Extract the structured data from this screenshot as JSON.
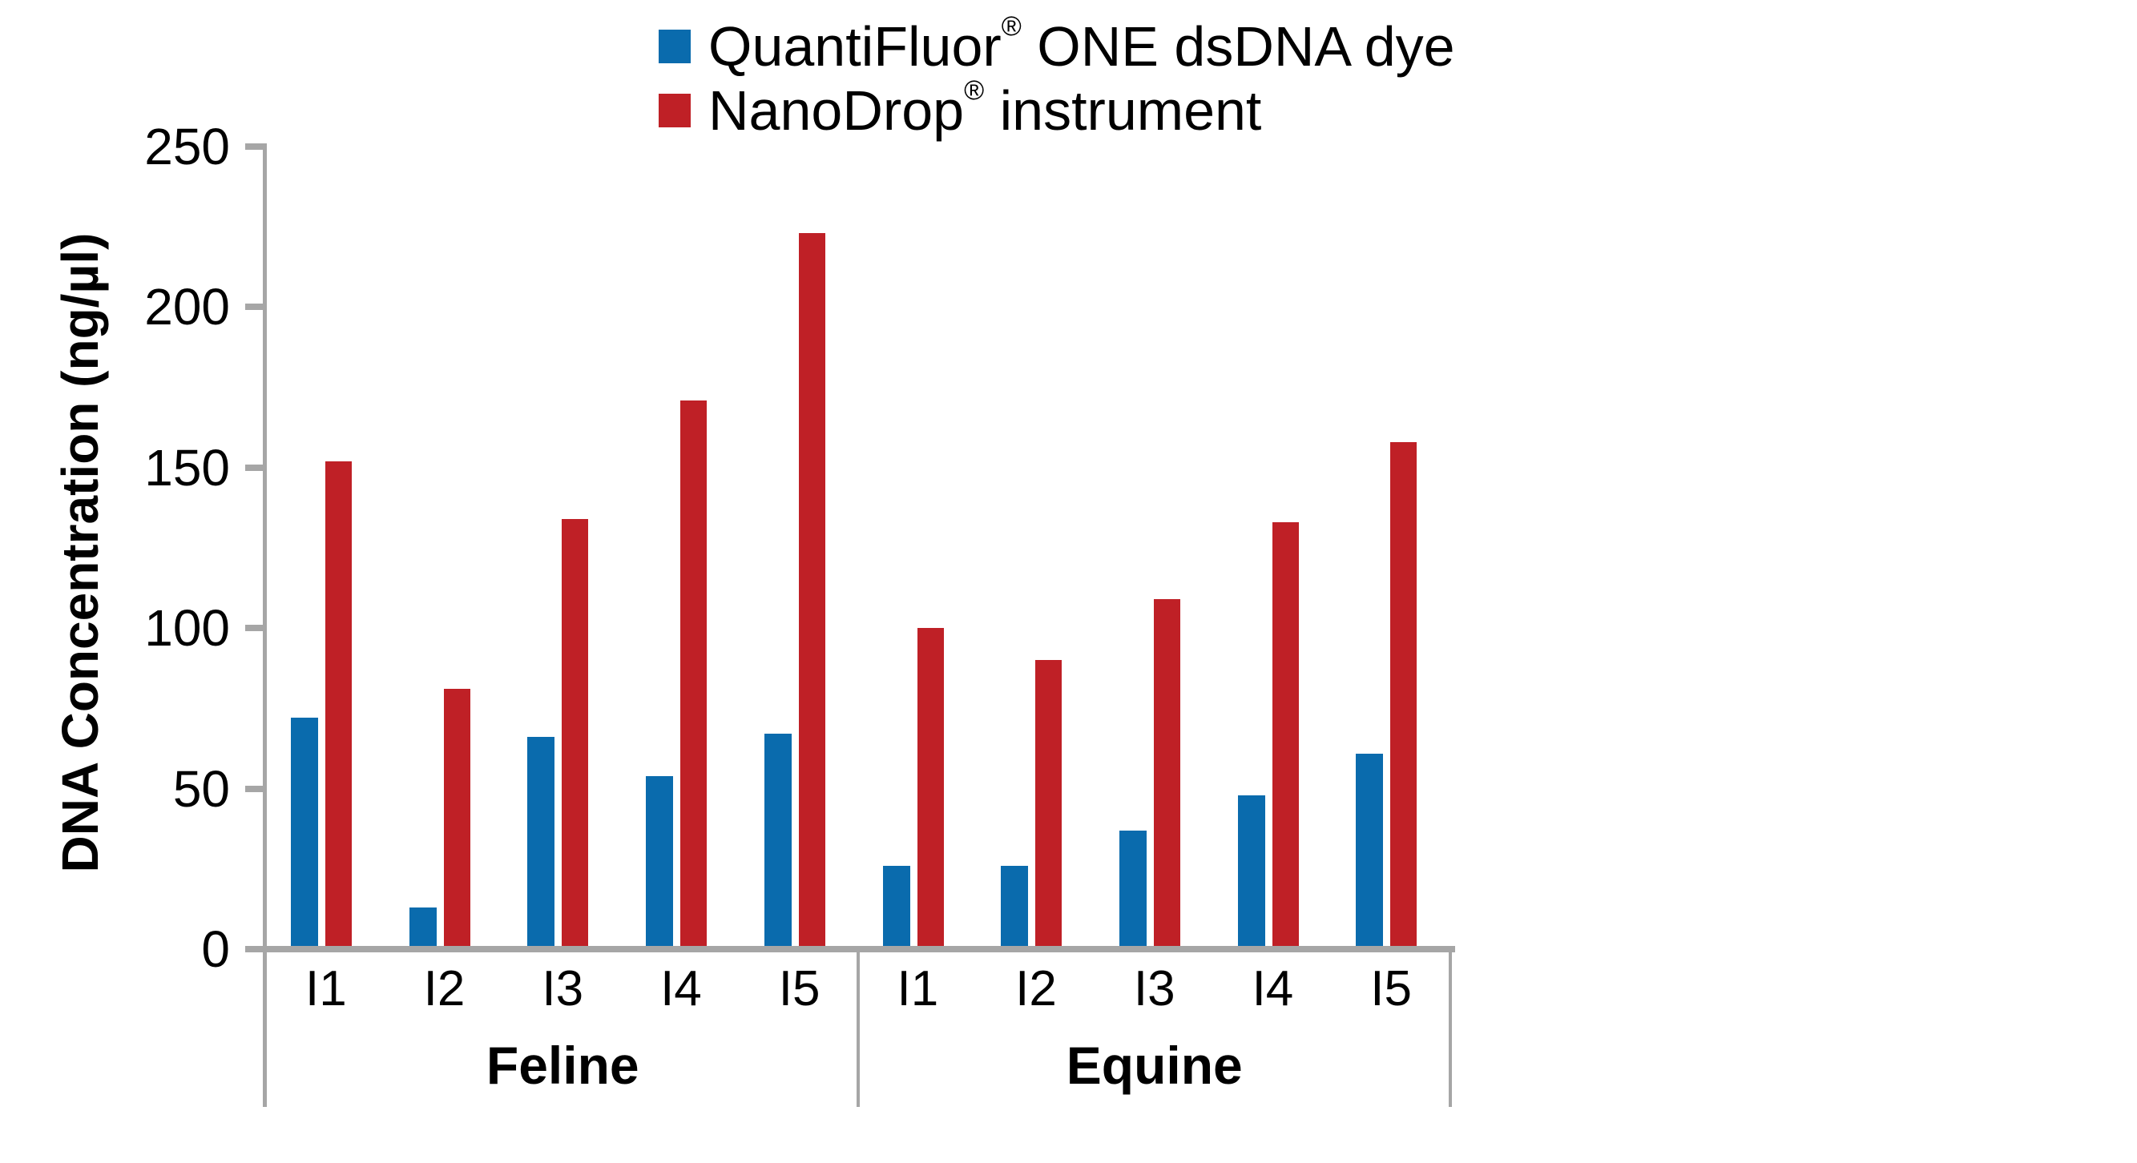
{
  "chart_data": {
    "type": "bar",
    "title": "",
    "ylabel": "DNA Concentration (ng/µl)",
    "ylim": [
      0,
      250
    ],
    "yticks": [
      0,
      50,
      100,
      150,
      200,
      250
    ],
    "grid": false,
    "legend_position": "top-center",
    "axis_color": "#A6A6A6",
    "text_color": "#000000",
    "groups": [
      {
        "key": "feline",
        "label": "Feline",
        "categories": [
          "I1",
          "I2",
          "I3",
          "I4",
          "I5"
        ]
      },
      {
        "key": "equine",
        "label": "Equine",
        "categories": [
          "I1",
          "I2",
          "I3",
          "I4",
          "I5"
        ]
      }
    ],
    "series": [
      {
        "key": "quantifluor",
        "name": "QuantiFluor® ONE dsDNA dye",
        "name_parts": {
          "main": "QuantiFluor",
          "reg": "®",
          "rest": " ONE dsDNA dye"
        },
        "color": "#0A6BAD",
        "values": {
          "feline": [
            72,
            13,
            66,
            54,
            67
          ],
          "equine": [
            26,
            26,
            37,
            48,
            61
          ]
        }
      },
      {
        "key": "nanodrop",
        "name": "NanoDrop® instrument",
        "name_parts": {
          "main": "NanoDrop",
          "reg": "®",
          "rest": " instrument"
        },
        "color": "#BF2026",
        "values": {
          "feline": [
            152,
            81,
            134,
            171,
            223
          ],
          "equine": [
            100,
            90,
            109,
            133,
            158
          ]
        }
      }
    ]
  }
}
